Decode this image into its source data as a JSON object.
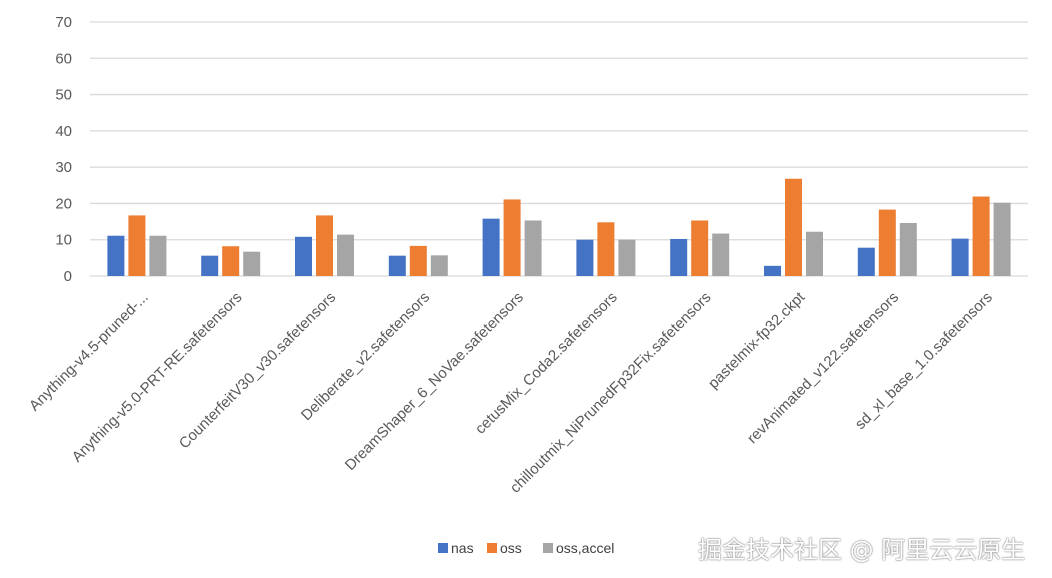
{
  "chart_data": {
    "type": "bar",
    "title": "",
    "xlabel": "",
    "ylabel": "",
    "ylim": [
      0,
      70
    ],
    "yticks": [
      0,
      10,
      20,
      30,
      40,
      50,
      60,
      70
    ],
    "grid": true,
    "legend_position": "bottom",
    "categories": [
      "Anything-v4.5-pruned-...",
      "Anything-v5.0-PRT-RE.safetensors",
      "CounterfeitV30_v30.safetensors",
      "Deliberate_v2.safetensors",
      "DreamShaper_6_NoVae.safetensors",
      "cetusMix_Coda2.safetensors",
      "chilloutmix_NiPrunedFp32Fix.safetensors",
      "pastelmix-fp32.ckpt",
      "revAnimated_v122.safetensors",
      "sd_xl_base_1.0.safetensors"
    ],
    "series": [
      {
        "name": "nas",
        "color": "#4472C4",
        "values": [
          11.1,
          5.6,
          10.8,
          5.6,
          15.8,
          10.0,
          10.2,
          2.8,
          7.8,
          10.3
        ]
      },
      {
        "name": "oss",
        "color": "#ED7D31",
        "values": [
          16.7,
          8.2,
          16.7,
          8.3,
          21.1,
          14.8,
          15.3,
          26.8,
          18.3,
          21.9
        ]
      },
      {
        "name": "oss,accel",
        "color": "#A5A5A5",
        "values": [
          11.1,
          6.7,
          11.4,
          5.7,
          15.3,
          10.0,
          11.7,
          12.2,
          14.6,
          20.2
        ]
      }
    ]
  },
  "watermark": "掘金技术社区 @ 阿里云云原生"
}
